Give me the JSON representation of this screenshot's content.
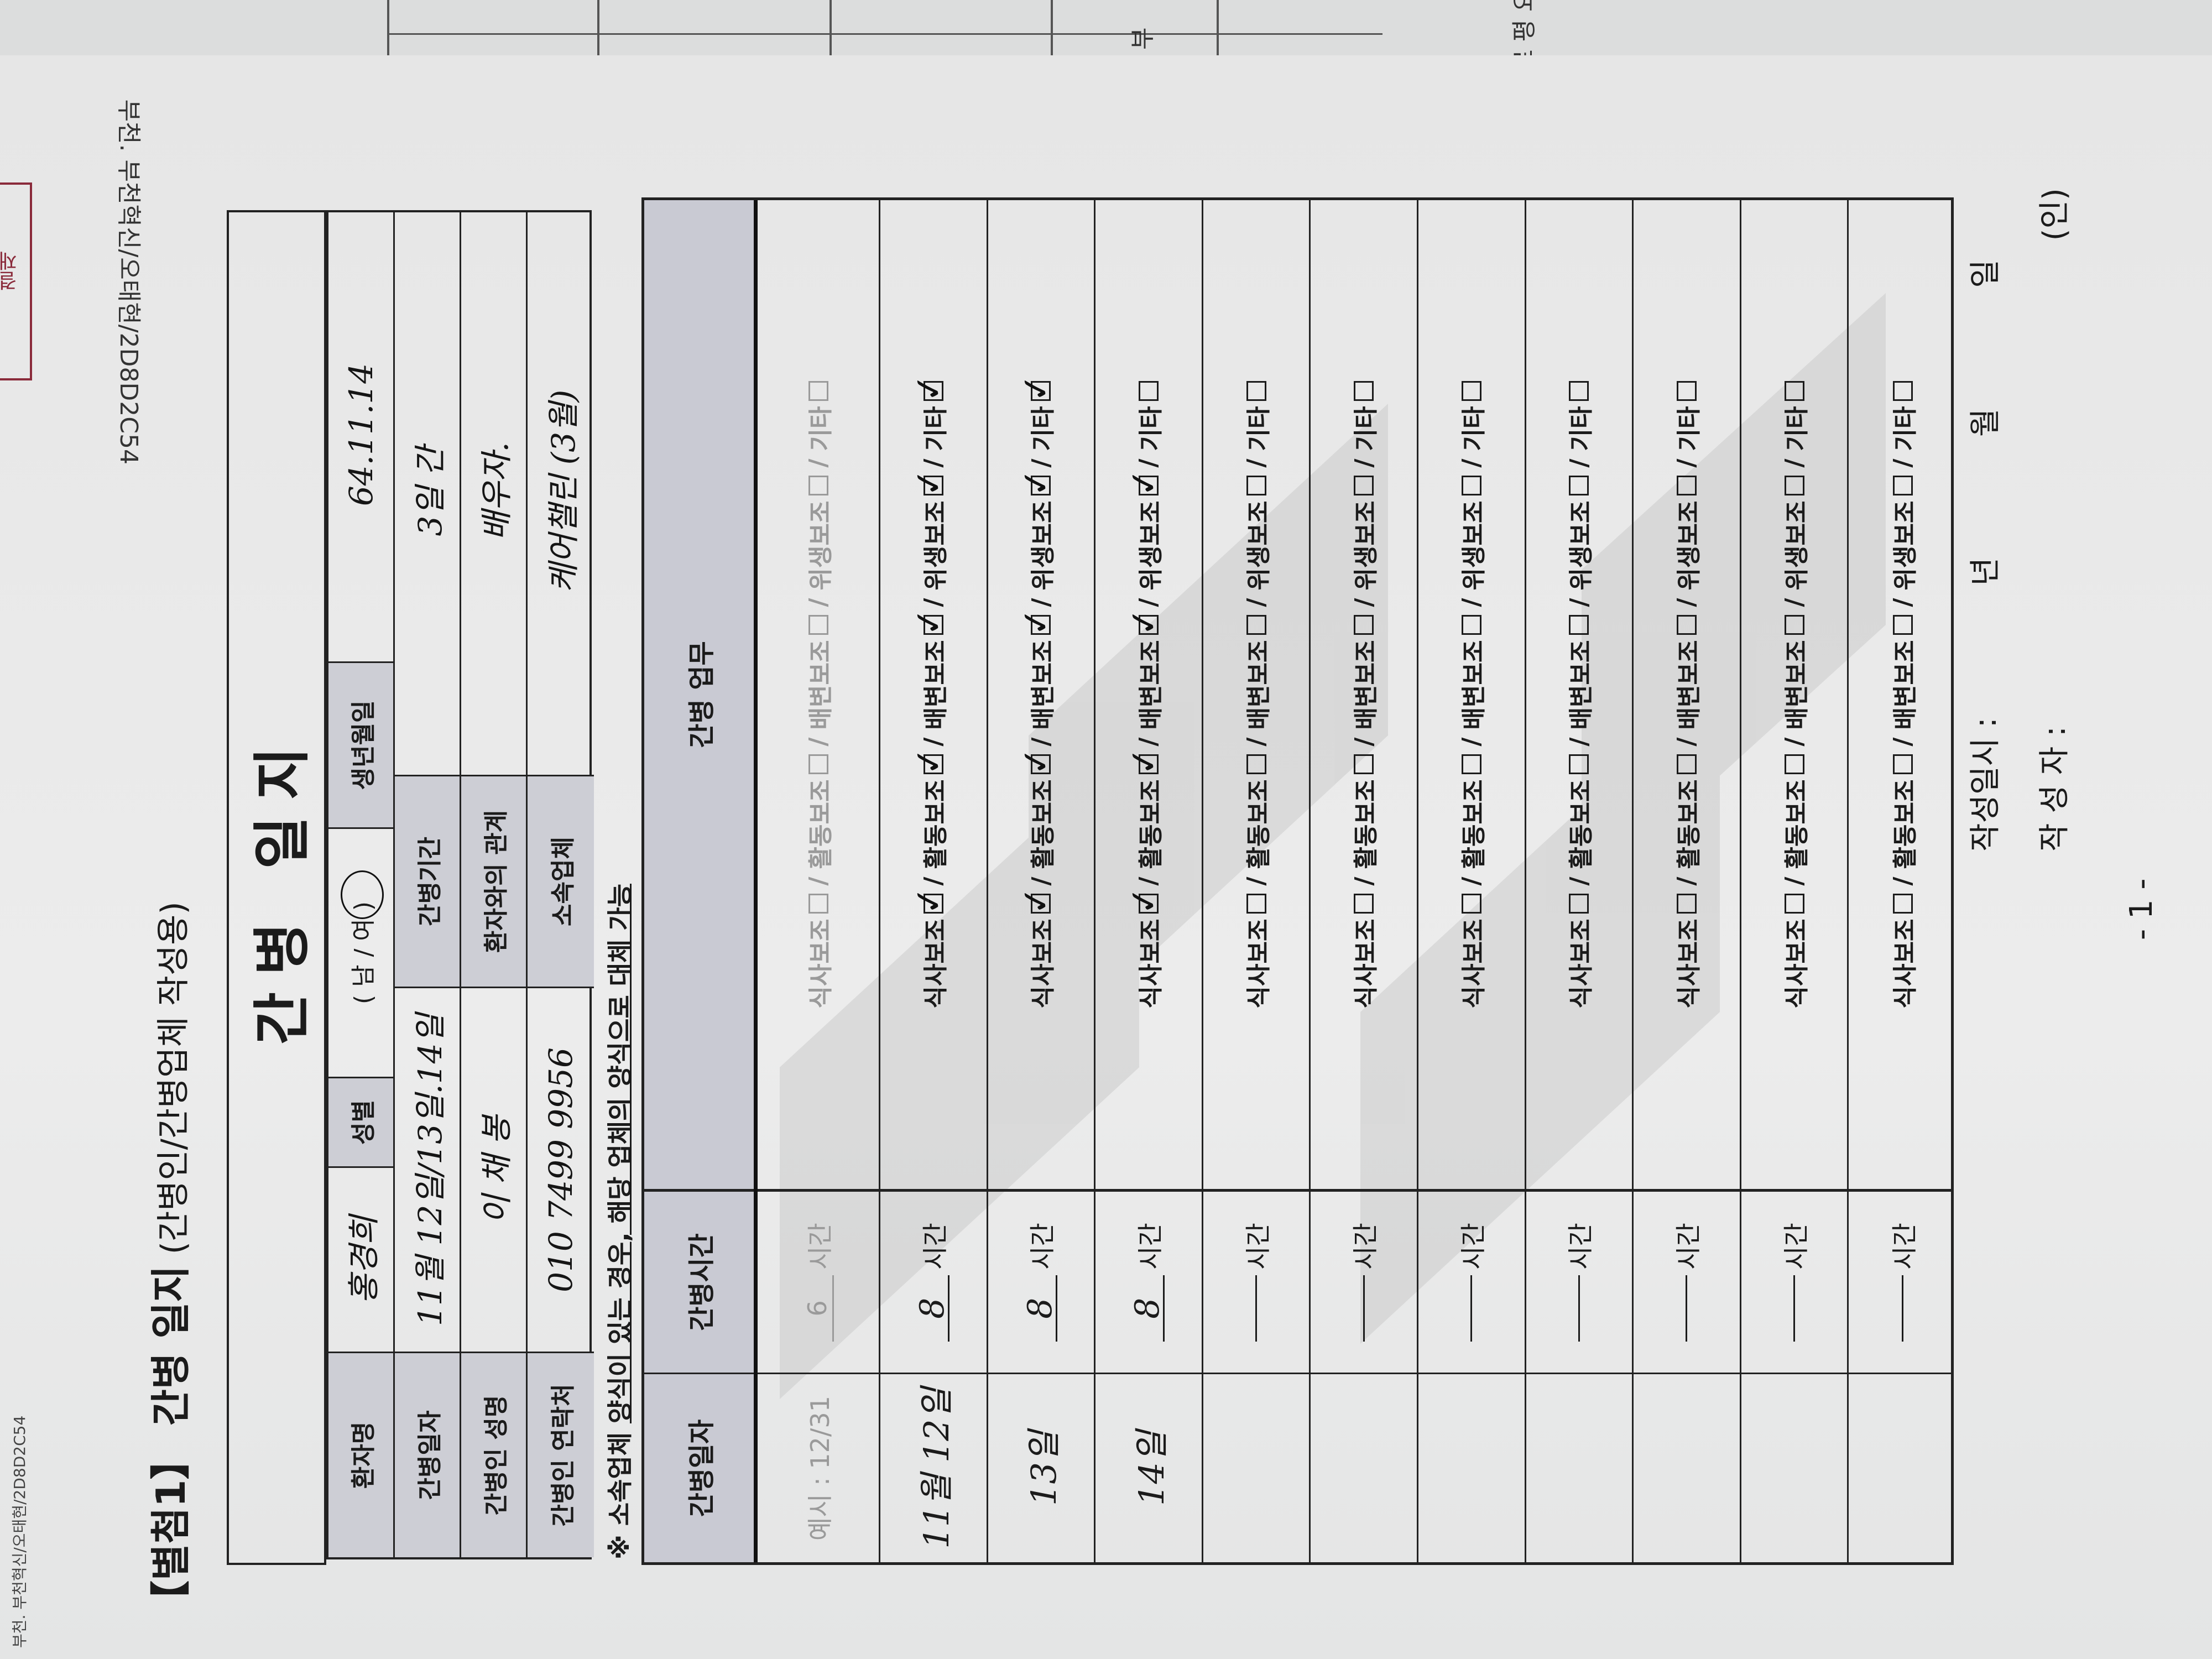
{
  "background": {
    "stamp_text": "결재",
    "fragment_a": "부",
    "fragment_b": "르 평 요"
  },
  "doc_codes": {
    "bottom_corner": "부천. 부천혁신/오태현/2D8D2C54",
    "top_flipped": "부천. 부천혁신/오태현/2D8D2C54"
  },
  "header": {
    "attachment": "【별첨1】 간병 일지",
    "subtitle": "(간병인/간병업체 작성용)",
    "title": "간병 일지"
  },
  "info": {
    "patient_name_label": "환자명",
    "patient_name": "홍경희",
    "sex_label": "성별",
    "sex_options": "( 남 / 여 )",
    "sex_selected": "여",
    "birth_label": "생년월일",
    "birth": "64.11.14",
    "care_dates_label": "간병일자",
    "care_dates": "11월 12일/13일.14일",
    "care_period_label": "간병기간",
    "care_period": "3일 간",
    "caregiver_name_label": "간병인 성명",
    "caregiver_name": "이 채 봉",
    "relation_label": "환자와의 관계",
    "relation": "배우자.",
    "caregiver_contact_label": "간병인 연락처",
    "caregiver_contact": "010 7499 9956",
    "company_label": "소속업체",
    "company": "케어챌린 (3월)"
  },
  "note": {
    "prefix": "※ 소속업체 ",
    "underlined": "양식이 있는 경우, 해당 업체의 양식으로 대체 가능"
  },
  "log": {
    "headers": [
      "간병일자",
      "간병시간",
      "간병 업무"
    ],
    "hours_unit": "시간",
    "task_labels": [
      "식사보조",
      "활동보조",
      "배변보조",
      "위생보조",
      "기타"
    ],
    "example": {
      "date": "예시 : 12/31",
      "hours": "6",
      "checked": [
        false,
        false,
        false,
        false,
        false
      ]
    },
    "rows": [
      {
        "date": "11월 12일",
        "hours": "8",
        "checked": [
          true,
          true,
          true,
          true,
          true
        ]
      },
      {
        "date": "13일",
        "hours": "8",
        "checked": [
          true,
          true,
          true,
          true,
          true
        ]
      },
      {
        "date": "14일",
        "hours": "8",
        "checked": [
          true,
          true,
          true,
          true,
          false
        ]
      },
      {
        "date": "",
        "hours": "",
        "checked": [
          false,
          false,
          false,
          false,
          false
        ]
      },
      {
        "date": "",
        "hours": "",
        "checked": [
          false,
          false,
          false,
          false,
          false
        ]
      },
      {
        "date": "",
        "hours": "",
        "checked": [
          false,
          false,
          false,
          false,
          false
        ]
      },
      {
        "date": "",
        "hours": "",
        "checked": [
          false,
          false,
          false,
          false,
          false
        ]
      },
      {
        "date": "",
        "hours": "",
        "checked": [
          false,
          false,
          false,
          false,
          false
        ]
      },
      {
        "date": "",
        "hours": "",
        "checked": [
          false,
          false,
          false,
          false,
          false
        ]
      },
      {
        "date": "",
        "hours": "",
        "checked": [
          false,
          false,
          false,
          false,
          false
        ]
      }
    ]
  },
  "footer": {
    "written_date_label": "작성일시 :",
    "year": "년",
    "month": "월",
    "day": "일",
    "author_label": "작 성 자 :",
    "seal": "(인)",
    "page": "- 1 -"
  }
}
